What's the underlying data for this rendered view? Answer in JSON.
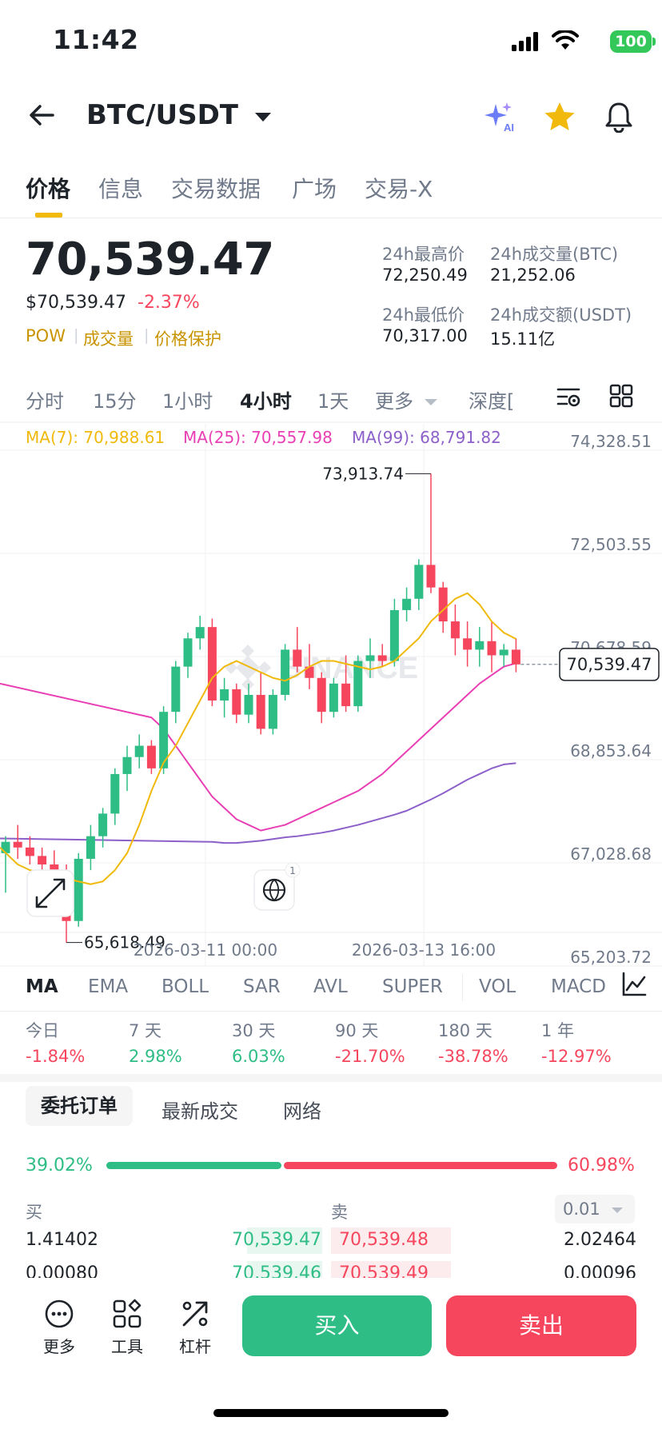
{
  "status_bar": {
    "time": "11:42",
    "battery": "100"
  },
  "header": {
    "pair": "BTC/USDT",
    "icons": [
      "back-arrow-icon",
      "ai-sparkle-icon",
      "star-icon",
      "bell-icon"
    ]
  },
  "main_tabs": [
    {
      "label": "价格",
      "active": true
    },
    {
      "label": "信息"
    },
    {
      "label": "交易数据"
    },
    {
      "label": "广场"
    },
    {
      "label": "交易-X"
    }
  ],
  "price": {
    "last": "70,539.47",
    "usd": "$70,539.47",
    "change": "-2.37%",
    "tags": [
      "POW",
      "成交量",
      "价格保护"
    ]
  },
  "stats": {
    "high_label": "24h最高价",
    "high_value": "72,250.49",
    "low_label": "24h最低价",
    "low_value": "70,317.00",
    "vol_btc_label": "24h成交量(BTC)",
    "vol_btc_value": "21,252.06",
    "vol_usdt_label": "24h成交额(USDT)",
    "vol_usdt_value": "15.11亿"
  },
  "timeframes": [
    {
      "label": "分时"
    },
    {
      "label": "15分"
    },
    {
      "label": "1小时"
    },
    {
      "label": "4小时",
      "active": true
    },
    {
      "label": "1天"
    },
    {
      "label": "更多"
    },
    {
      "label": "深度["
    }
  ],
  "ma_legend": {
    "ma7": "MA(7): 70,988.61",
    "ma25": "MA(25): 70,557.98",
    "ma99": "MA(99): 68,791.82",
    "colors": {
      "ma7": "#f0b90b",
      "ma25": "#e93fb4",
      "ma99": "#8c5fc9"
    }
  },
  "chart_data": {
    "type": "candlestick",
    "y_ticks": [
      "74,328.51",
      "72,503.55",
      "70,678.59",
      "68,853.64",
      "67,028.68",
      "65,203.72"
    ],
    "x_ticks": [
      "2026-03-11 00:00",
      "2026-03-13 16:00"
    ],
    "ylim": [
      65203.72,
      74328.51
    ],
    "last_price_label": "70,539.47",
    "high_annotation": "73,913.74",
    "low_annotation": "65,618.49",
    "watermark": "BINANCE",
    "badge_count": "1",
    "up_color": "#2ebd85",
    "down_color": "#f6465d",
    "candles": [
      [
        67200,
        67500,
        66500,
        67400
      ],
      [
        67400,
        67700,
        67100,
        67300
      ],
      [
        67300,
        67500,
        67000,
        67150
      ],
      [
        67150,
        67300,
        66800,
        67000
      ],
      [
        67000,
        67250,
        66500,
        66700
      ],
      [
        66700,
        67000,
        65618.49,
        66000
      ],
      [
        66000,
        67200,
        65900,
        67100
      ],
      [
        67100,
        67700,
        66900,
        67500
      ],
      [
        67500,
        68000,
        67300,
        67900
      ],
      [
        67900,
        68700,
        67700,
        68600
      ],
      [
        68600,
        69100,
        68300,
        68900
      ],
      [
        68900,
        69300,
        68700,
        69100
      ],
      [
        69100,
        69200,
        68600,
        68700
      ],
      [
        68700,
        69800,
        68600,
        69700
      ],
      [
        69700,
        70600,
        69500,
        70500
      ],
      [
        70500,
        71100,
        70300,
        71000
      ],
      [
        71000,
        71400,
        70800,
        71200
      ],
      [
        71200,
        71350,
        69800,
        69900
      ],
      [
        69900,
        70300,
        69600,
        70100
      ],
      [
        70100,
        70200,
        69500,
        69650
      ],
      [
        69650,
        70200,
        69500,
        70000
      ],
      [
        70000,
        70400,
        69300,
        69400
      ],
      [
        69400,
        70100,
        69300,
        70000
      ],
      [
        70000,
        70900,
        69900,
        70800
      ],
      [
        70800,
        71200,
        70400,
        70500
      ],
      [
        70500,
        70900,
        70100,
        70300
      ],
      [
        70300,
        70400,
        69500,
        69700
      ],
      [
        69700,
        70300,
        69600,
        70200
      ],
      [
        70200,
        70700,
        69700,
        69800
      ],
      [
        69800,
        70700,
        69700,
        70600
      ],
      [
        70600,
        71000,
        70300,
        70700
      ],
      [
        70700,
        70900,
        70500,
        70600
      ],
      [
        70600,
        71700,
        70500,
        71500
      ],
      [
        71500,
        71900,
        71300,
        71700
      ],
      [
        71700,
        72400,
        71500,
        72300
      ],
      [
        72300,
        73913.74,
        71800,
        71900
      ],
      [
        71900,
        72000,
        71100,
        71300
      ],
      [
        71300,
        71600,
        70700,
        71000
      ],
      [
        71000,
        71300,
        70500,
        70800
      ],
      [
        70800,
        71200,
        70500,
        70950
      ],
      [
        70950,
        71300,
        70400,
        70700
      ],
      [
        70700,
        70900,
        70500,
        70800
      ],
      [
        70800,
        71000,
        70400,
        70539.47
      ]
    ],
    "ma7": [
      67000,
      66900,
      66850,
      66800,
      66750,
      66700,
      66650,
      66700,
      66900,
      67200,
      67700,
      68300,
      68800,
      69100,
      69500,
      69900,
      70300,
      70500,
      70600,
      70500,
      70400,
      70300,
      70250,
      70350,
      70500,
      70600,
      70600,
      70550,
      70500,
      70450,
      70500,
      70600,
      70800,
      71000,
      71300,
      71500,
      71700,
      71800,
      71600,
      71300,
      71100,
      70990
    ],
    "ma25": [
      69600,
      69400,
      69100,
      68800,
      68500,
      68200,
      68000,
      67800,
      67700,
      67600,
      67650,
      67700,
      67800,
      67900,
      68000,
      68100,
      68200,
      68300,
      68450,
      68600,
      68800,
      69000,
      69200,
      69400,
      69600,
      69800,
      70000,
      70200,
      70350,
      70500,
      70560
    ],
    "ma99": [
      67400,
      67380,
      67380,
      67400,
      67420,
      67450,
      67480,
      67500,
      67530,
      67560,
      67600,
      67650,
      67700,
      67760,
      67820,
      67880,
      67950,
      68050,
      68150,
      68260,
      68380,
      68500,
      68600,
      68700,
      68770,
      68792
    ]
  },
  "indicators": [
    {
      "label": "MA",
      "active": true
    },
    {
      "label": "EMA"
    },
    {
      "label": "BOLL"
    },
    {
      "label": "SAR"
    },
    {
      "label": "AVL"
    },
    {
      "label": "SUPER"
    },
    {
      "label": "VOL"
    },
    {
      "label": "MACD"
    }
  ],
  "performance": [
    {
      "label": "今日",
      "value": "-1.84%",
      "dir": "down"
    },
    {
      "label": "7 天",
      "value": "2.98%",
      "dir": "up"
    },
    {
      "label": "30 天",
      "value": "6.03%",
      "dir": "up"
    },
    {
      "label": "90 天",
      "value": "-21.70%",
      "dir": "down"
    },
    {
      "label": "180 天",
      "value": "-38.78%",
      "dir": "down"
    },
    {
      "label": "1 年",
      "value": "-12.97%",
      "dir": "down"
    }
  ],
  "orderbook": {
    "tabs": [
      "委托订单",
      "最新成交",
      "网络"
    ],
    "buy_ratio": "39.02%",
    "sell_ratio": "60.98%",
    "buy_ratio_value": 39.02,
    "buy_header": "买",
    "sell_header": "卖",
    "precision": "0.01",
    "rows": [
      {
        "buy_qty": "1.41402",
        "buy_price": "70,539.47",
        "sell_price": "70,539.48",
        "sell_qty": "2.02464"
      },
      {
        "buy_qty": "0.00080",
        "buy_price": "70,539.46",
        "sell_price": "70,539.49",
        "sell_qty": "0.00096"
      }
    ]
  },
  "bottom_bar": {
    "more": "更多",
    "tools": "工具",
    "leverage": "杠杆",
    "buy": "买入",
    "sell": "卖出"
  }
}
